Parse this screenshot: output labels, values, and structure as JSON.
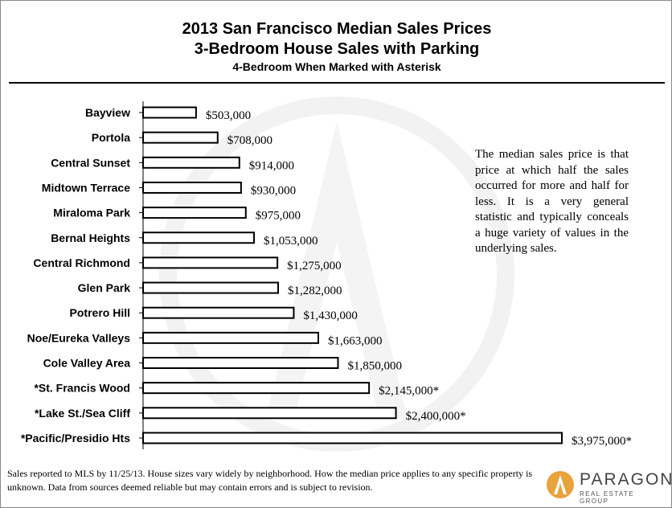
{
  "title_line1": "2013 San Francisco Median Sales Prices",
  "title_line2": "3-Bedroom House Sales with Parking",
  "subtitle": "4-Bedroom When Marked with Asterisk",
  "note": "The median sales price is that price at which half the sales occurred for more and half for less. It is a very general statistic and typically conceals a huge variety of values in the underlying sales.",
  "footer": "Sales reported to MLS by 11/25/13. House sizes vary widely by neighborhood. How the median price applies to any specific property is unknown. Data from sources deemed reliable but may contain errors and is subject to revision.",
  "logo": {
    "name": "PARAGON",
    "tagline": "REAL ESTATE GROUP",
    "accent": "#e8a33d"
  },
  "chart_data": {
    "type": "bar",
    "orientation": "horizontal",
    "title": "2013 San Francisco Median Sales Prices",
    "subtitle": "3-Bedroom House Sales with Parking",
    "bar_fill": "#ffffff",
    "bar_stroke": "#000000",
    "categories": [
      "Bayview",
      "Portola",
      "Central Sunset",
      "Midtown Terrace",
      "Miraloma Park",
      "Bernal Heights",
      "Central Richmond",
      "Glen Park",
      "Potrero Hill",
      "Noe/Eureka Valleys",
      "Cole Valley Area",
      "*St. Francis Wood",
      "*Lake St./Sea Cliff",
      "*Pacific/Presidio Hts"
    ],
    "values": [
      503000,
      708000,
      914000,
      930000,
      975000,
      1053000,
      1275000,
      1282000,
      1430000,
      1663000,
      1850000,
      2145000,
      2400000,
      3975000
    ],
    "labels": [
      "$503,000",
      "$708,000",
      "$914,000",
      "$930,000",
      "$975,000",
      "$1,053,000",
      "$1,275,000",
      "$1,282,000",
      "$1,430,000",
      "$1,663,000",
      "$1,850,000",
      "$2,145,000*",
      "$2,400,000*",
      "$3,975,000*"
    ],
    "xlim": [
      0,
      4000000
    ]
  }
}
